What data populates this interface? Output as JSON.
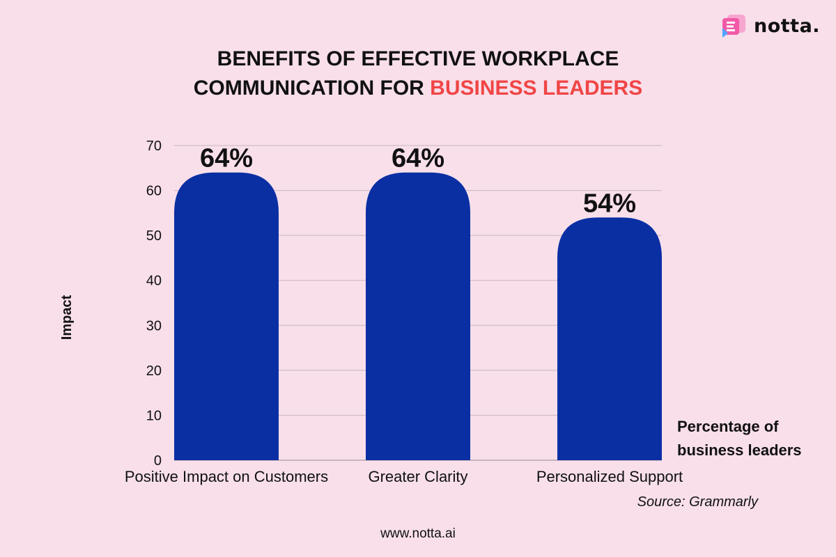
{
  "brand": {
    "logo_text": "notta.",
    "logo_colors": [
      "#f25aa7",
      "#4ea6ff",
      "#ffffff"
    ]
  },
  "title": {
    "line1": "BENEFITS OF EFFECTIVE WORKPLACE",
    "line2_prefix": "COMMUNICATION FOR ",
    "line2_accent": "BUSINESS LEADERS",
    "accent_color": "#f04545"
  },
  "chart_data": {
    "type": "bar",
    "categories": [
      "Positive Impact on Customers",
      "Greater Clarity",
      "Personalized Support"
    ],
    "values": [
      64,
      64,
      54
    ],
    "data_labels": [
      "64%",
      "64%",
      "54%"
    ],
    "title": "BENEFITS OF EFFECTIVE WORKPLACE COMMUNICATION FOR BUSINESS LEADERS",
    "xlabel": "",
    "ylabel": "Impact",
    "ylim": [
      0,
      70
    ],
    "yticks": [
      0,
      10,
      20,
      30,
      40,
      50,
      60,
      70
    ],
    "grid": true,
    "legend": {
      "placement": "bottom-right",
      "lines": [
        "Percentage of",
        "business leaders"
      ]
    },
    "bar_color": "#0a2fa3",
    "grid_color": "#c9b5bf"
  },
  "source": "Source: Grammarly",
  "footer": "www.notta.ai"
}
